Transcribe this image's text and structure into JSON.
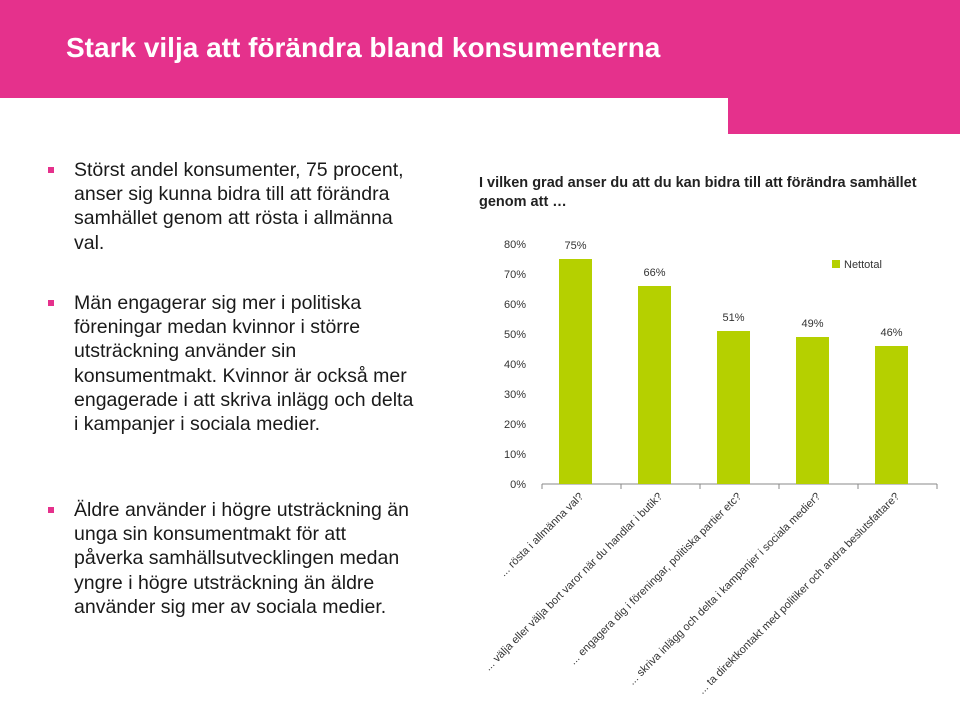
{
  "slide": {
    "title": "Stark vilja att förändra bland konsumenterna",
    "bullets": [
      "Störst andel konsumenter, 75 procent, anser sig kunna bidra till att förändra samhället genom att rösta i allmänna val.",
      "Män engagerar sig mer i politiska föreningar medan kvinnor i större utsträckning använder sin konsumentmakt. Kvinnor är också mer engagerade i att skriva inlägg och delta i kampanjer i sociala medier.",
      "Äldre använder i högre utsträckning än unga sin konsumentmakt för att påverka samhällsutvecklingen medan yngre i högre utsträckning än äldre använder sig mer av sociala medier."
    ]
  },
  "colors": {
    "header": "#e5318c",
    "bar": "#b5d000"
  },
  "chart_data": {
    "type": "bar",
    "title": "I vilken grad anser du att du kan bidra till att förändra samhället genom att …",
    "categories": [
      "... rösta i allmänna val?",
      "... välja eller välja bort varor när du handlar i butik?",
      "... engagera dig i föreningar, politiska partier etc?",
      "... skriva inlägg och delta i kampanjer i sociala medier?",
      "... ta direktkontakt med politiker och andra beslutsfattare?"
    ],
    "series": [
      {
        "name": "Nettotal",
        "values": [
          75,
          66,
          51,
          49,
          46
        ]
      }
    ],
    "value_labels": [
      "75%",
      "66%",
      "51%",
      "49%",
      "46%"
    ],
    "yticks": [
      "0%",
      "10%",
      "20%",
      "30%",
      "40%",
      "50%",
      "60%",
      "70%",
      "80%"
    ],
    "ylim": [
      0,
      80
    ],
    "grid": false,
    "legend": "top-right"
  }
}
